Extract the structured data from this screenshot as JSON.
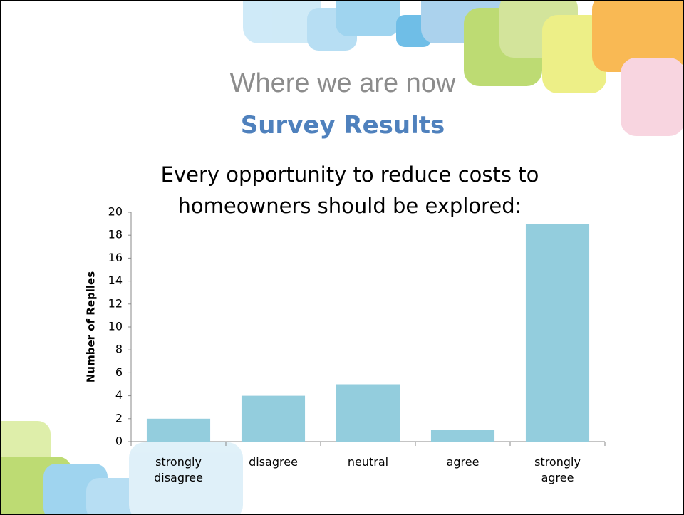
{
  "header": {
    "title": "Where we are now",
    "subtitle": "Survey Results"
  },
  "chart_data": {
    "type": "bar",
    "title": "Every opportunity to reduce costs to homeowners should be explored:",
    "y_label": "Number of Replies",
    "categories": [
      "strongly disagree",
      "disagree",
      "neutral",
      "agree",
      "strongly agree"
    ],
    "values": [
      2,
      4,
      5,
      1,
      19
    ],
    "color": "#93cddd",
    "ylim": [
      0,
      20
    ],
    "yticks": [
      0,
      2,
      4,
      6,
      8,
      10,
      12,
      14,
      16,
      18,
      20
    ],
    "grid": false
  }
}
